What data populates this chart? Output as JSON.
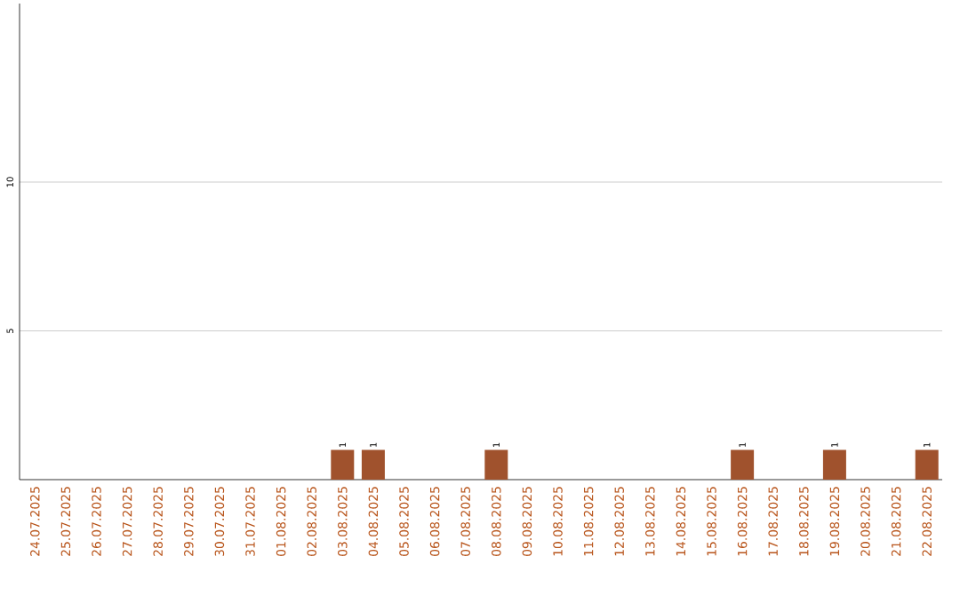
{
  "chart_data": {
    "type": "bar",
    "categories": [
      "24.07.2025",
      "25.07.2025",
      "26.07.2025",
      "27.07.2025",
      "28.07.2025",
      "29.07.2025",
      "30.07.2025",
      "31.07.2025",
      "01.08.2025",
      "02.08.2025",
      "03.08.2025",
      "04.08.2025",
      "05.08.2025",
      "06.08.2025",
      "07.08.2025",
      "08.08.2025",
      "09.08.2025",
      "10.08.2025",
      "11.08.2025",
      "12.08.2025",
      "13.08.2025",
      "14.08.2025",
      "15.08.2025",
      "16.08.2025",
      "17.08.2025",
      "18.08.2025",
      "19.08.2025",
      "20.08.2025",
      "21.08.2025",
      "22.08.2025"
    ],
    "values": [
      0,
      0,
      0,
      0,
      0,
      0,
      0,
      0,
      0,
      0,
      1,
      1,
      0,
      0,
      0,
      1,
      0,
      0,
      0,
      0,
      0,
      0,
      0,
      1,
      0,
      0,
      1,
      0,
      0,
      1
    ],
    "value_labels": [
      null,
      null,
      null,
      null,
      null,
      null,
      null,
      null,
      null,
      null,
      "1",
      "1",
      null,
      null,
      null,
      "1",
      null,
      null,
      null,
      null,
      null,
      null,
      null,
      "1",
      null,
      null,
      "1",
      null,
      null,
      "1"
    ],
    "color": "#a0522d",
    "ylim": [
      0,
      16
    ],
    "yticks": [
      5,
      10
    ],
    "grid": "y"
  }
}
